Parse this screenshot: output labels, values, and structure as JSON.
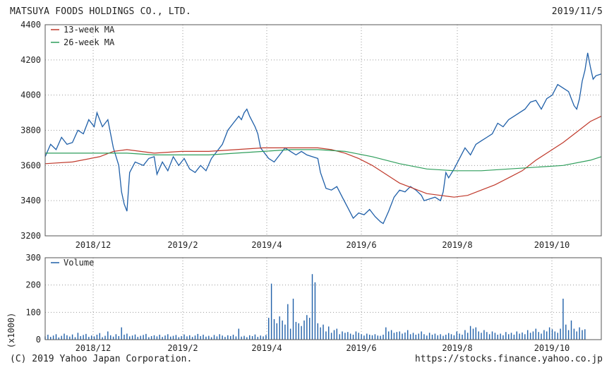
{
  "header": {
    "company": "MATSUYA FOODS HOLDINGS CO., LTD.",
    "date": "2019/11/5"
  },
  "footer": {
    "copyright": "(C) 2019 Yahoo Japan Corporation.",
    "url": "https://stocks.finance.yahoo.co.jp"
  },
  "colors": {
    "price": "#1f5fa8",
    "ma13": "#c0392b",
    "ma26": "#2e9e5b",
    "volume": "#1f5fa8",
    "grid": "#9a9a9a",
    "frame": "#555555"
  },
  "chart_data": [
    {
      "type": "line",
      "ylim": [
        3200,
        4400
      ],
      "yticks": [
        3200,
        3400,
        3600,
        3800,
        4000,
        4200,
        4400
      ],
      "xticks": [
        "2018/12",
        "2019/2",
        "2019/4",
        "2019/6",
        "2019/8",
        "2019/10"
      ],
      "grid": true,
      "legend_position": "top-left",
      "series": [
        {
          "name": "",
          "points": [
            [
              0,
              3650
            ],
            [
              2,
              3720
            ],
            [
              4,
              3690
            ],
            [
              6,
              3760
            ],
            [
              8,
              3720
            ],
            [
              10,
              3730
            ],
            [
              12,
              3800
            ],
            [
              14,
              3780
            ],
            [
              16,
              3860
            ],
            [
              18,
              3820
            ],
            [
              19,
              3900
            ],
            [
              21,
              3820
            ],
            [
              23,
              3860
            ],
            [
              24,
              3780
            ],
            [
              25,
              3700
            ],
            [
              27,
              3600
            ],
            [
              28,
              3450
            ],
            [
              29,
              3380
            ],
            [
              30,
              3340
            ],
            [
              31,
              3560
            ],
            [
              33,
              3620
            ],
            [
              36,
              3600
            ],
            [
              38,
              3640
            ],
            [
              40,
              3650
            ],
            [
              41,
              3550
            ],
            [
              43,
              3620
            ],
            [
              45,
              3570
            ],
            [
              47,
              3650
            ],
            [
              49,
              3600
            ],
            [
              51,
              3640
            ],
            [
              53,
              3580
            ],
            [
              55,
              3560
            ],
            [
              57,
              3600
            ],
            [
              59,
              3570
            ],
            [
              61,
              3640
            ],
            [
              63,
              3680
            ],
            [
              65,
              3720
            ],
            [
              67,
              3800
            ],
            [
              69,
              3840
            ],
            [
              71,
              3880
            ],
            [
              72,
              3860
            ],
            [
              73,
              3900
            ],
            [
              74,
              3920
            ],
            [
              75,
              3880
            ],
            [
              77,
              3820
            ],
            [
              78,
              3780
            ],
            [
              79,
              3700
            ],
            [
              80,
              3680
            ],
            [
              82,
              3640
            ],
            [
              84,
              3620
            ],
            [
              86,
              3660
            ],
            [
              88,
              3700
            ],
            [
              90,
              3680
            ],
            [
              92,
              3660
            ],
            [
              94,
              3680
            ],
            [
              96,
              3660
            ],
            [
              98,
              3650
            ],
            [
              100,
              3640
            ],
            [
              101,
              3560
            ],
            [
              103,
              3470
            ],
            [
              105,
              3460
            ],
            [
              107,
              3480
            ],
            [
              109,
              3420
            ],
            [
              111,
              3360
            ],
            [
              113,
              3300
            ],
            [
              115,
              3330
            ],
            [
              117,
              3320
            ],
            [
              119,
              3350
            ],
            [
              121,
              3310
            ],
            [
              123,
              3280
            ],
            [
              124,
              3270
            ],
            [
              126,
              3340
            ],
            [
              128,
              3420
            ],
            [
              130,
              3460
            ],
            [
              132,
              3450
            ],
            [
              134,
              3480
            ],
            [
              136,
              3460
            ],
            [
              138,
              3430
            ],
            [
              139,
              3400
            ],
            [
              141,
              3410
            ],
            [
              143,
              3420
            ],
            [
              145,
              3400
            ],
            [
              146,
              3450
            ],
            [
              147,
              3560
            ],
            [
              148,
              3530
            ],
            [
              150,
              3580
            ],
            [
              152,
              3640
            ],
            [
              154,
              3700
            ],
            [
              156,
              3660
            ],
            [
              158,
              3720
            ],
            [
              160,
              3740
            ],
            [
              162,
              3760
            ],
            [
              164,
              3780
            ],
            [
              166,
              3840
            ],
            [
              168,
              3820
            ],
            [
              170,
              3860
            ],
            [
              172,
              3880
            ],
            [
              174,
              3900
            ],
            [
              176,
              3920
            ],
            [
              178,
              3960
            ],
            [
              180,
              3970
            ],
            [
              182,
              3920
            ],
            [
              184,
              3980
            ],
            [
              186,
              4000
            ],
            [
              188,
              4060
            ],
            [
              190,
              4040
            ],
            [
              192,
              4020
            ],
            [
              194,
              3940
            ],
            [
              195,
              3920
            ],
            [
              196,
              3980
            ],
            [
              197,
              4080
            ],
            [
              198,
              4140
            ],
            [
              199,
              4240
            ],
            [
              200,
              4160
            ],
            [
              201,
              4090
            ],
            [
              202,
              4110
            ],
            [
              204,
              4120
            ]
          ]
        },
        {
          "name": "13-week MA",
          "points": [
            [
              0,
              3610
            ],
            [
              10,
              3620
            ],
            [
              20,
              3650
            ],
            [
              25,
              3680
            ],
            [
              30,
              3690
            ],
            [
              40,
              3670
            ],
            [
              50,
              3680
            ],
            [
              60,
              3680
            ],
            [
              70,
              3690
            ],
            [
              80,
              3700
            ],
            [
              90,
              3700
            ],
            [
              100,
              3700
            ],
            [
              105,
              3690
            ],
            [
              110,
              3670
            ],
            [
              115,
              3640
            ],
            [
              120,
              3600
            ],
            [
              125,
              3550
            ],
            [
              130,
              3500
            ],
            [
              135,
              3470
            ],
            [
              140,
              3440
            ],
            [
              145,
              3430
            ],
            [
              150,
              3420
            ],
            [
              155,
              3430
            ],
            [
              160,
              3460
            ],
            [
              165,
              3490
            ],
            [
              170,
              3530
            ],
            [
              175,
              3570
            ],
            [
              180,
              3630
            ],
            [
              185,
              3680
            ],
            [
              190,
              3730
            ],
            [
              195,
              3790
            ],
            [
              200,
              3850
            ],
            [
              204,
              3880
            ]
          ]
        },
        {
          "name": "26-week MA",
          "points": [
            [
              0,
              3670
            ],
            [
              10,
              3670
            ],
            [
              20,
              3670
            ],
            [
              30,
              3670
            ],
            [
              40,
              3660
            ],
            [
              50,
              3660
            ],
            [
              60,
              3660
            ],
            [
              70,
              3670
            ],
            [
              80,
              3680
            ],
            [
              90,
              3690
            ],
            [
              100,
              3690
            ],
            [
              110,
              3680
            ],
            [
              120,
              3650
            ],
            [
              130,
              3610
            ],
            [
              140,
              3580
            ],
            [
              150,
              3570
            ],
            [
              160,
              3570
            ],
            [
              170,
              3580
            ],
            [
              180,
              3590
            ],
            [
              190,
              3600
            ],
            [
              200,
              3630
            ],
            [
              204,
              3650
            ]
          ]
        }
      ]
    },
    {
      "type": "bar",
      "ylim": [
        0,
        300
      ],
      "yticks": [
        0,
        100,
        200,
        300
      ],
      "ylabel": "(x1000)",
      "xticks": [
        "2018/12",
        "2019/2",
        "2019/4",
        "2019/6",
        "2019/8",
        "2019/10"
      ],
      "grid": true,
      "legend_position": "top-left",
      "series": [
        {
          "name": "Volume",
          "values": [
            12,
            18,
            10,
            15,
            20,
            8,
            14,
            22,
            16,
            11,
            19,
            9,
            25,
            13,
            17,
            21,
            10,
            15,
            12,
            18,
            24,
            9,
            14,
            30,
            16,
            11,
            20,
            13,
            45,
            18,
            22,
            12,
            15,
            19,
            10,
            14,
            17,
            21,
            9,
            13,
            16,
            12,
            18,
            10,
            15,
            20,
            11,
            14,
            17,
            9,
            13,
            19,
            12,
            16,
            10,
            15,
            21,
            13,
            18,
            11,
            14,
            9,
            17,
            12,
            20,
            15,
            10,
            16,
            13,
            18,
            12,
            40,
            11,
            14,
            9,
            16,
            13,
            19,
            10,
            15,
            12,
            17,
            80,
            205,
            75,
            60,
            85,
            70,
            55,
            130,
            40,
            150,
            65,
            60,
            50,
            70,
            90,
            80,
            240,
            210,
            60,
            45,
            55,
            30,
            48,
            25,
            35,
            40,
            20,
            30,
            25,
            28,
            22,
            18,
            30,
            25,
            20,
            15,
            22,
            18,
            16,
            20,
            15,
            14,
            18,
            45,
            30,
            35,
            25,
            28,
            30,
            22,
            26,
            35,
            20,
            25,
            18,
            22,
            30,
            20,
            15,
            25,
            18,
            22,
            16,
            20,
            14,
            18,
            24,
            20,
            16,
            30,
            22,
            18,
            35,
            25,
            50,
            40,
            45,
            30,
            25,
            35,
            28,
            20,
            30,
            25,
            18,
            22,
            16,
            28,
            20,
            25,
            18,
            30,
            22,
            26,
            20,
            35,
            25,
            30,
            40,
            28,
            22,
            35,
            30,
            45,
            38,
            30,
            25,
            40,
            150,
            55,
            35,
            70,
            40,
            30,
            45,
            35,
            38
          ]
        }
      ]
    }
  ]
}
